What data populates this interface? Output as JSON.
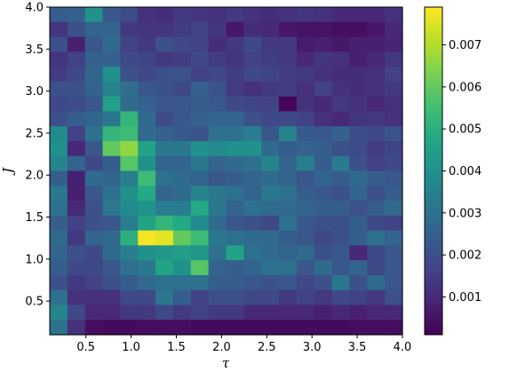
{
  "chart_data": {
    "type": "heatmap",
    "title": "",
    "xlabel": "τ",
    "ylabel": "J",
    "xlim": [
      0.1,
      4.0
    ],
    "ylim": [
      0.1,
      4.0
    ],
    "x_ticks": [
      0.5,
      1.0,
      1.5,
      2.0,
      2.5,
      3.0,
      3.5,
      4.0
    ],
    "x_tick_labels": [
      "0.5",
      "1.0",
      "1.5",
      "2.0",
      "2.5",
      "3.0",
      "3.5",
      "4.0"
    ],
    "y_ticks": [
      0.5,
      1.0,
      1.5,
      2.0,
      2.5,
      3.0,
      3.5,
      4.0
    ],
    "y_tick_labels": [
      "0.5",
      "1.0",
      "1.5",
      "2.0",
      "2.5",
      "3.0",
      "3.5",
      "4.0"
    ],
    "colormap": "viridis",
    "colorbar_range": [
      0.0001,
      0.0079
    ],
    "colorbar_ticks": [
      0.001,
      0.002,
      0.003,
      0.004,
      0.005,
      0.006,
      0.007
    ],
    "colorbar_tick_labels": [
      "0.001",
      "0.002",
      "0.003",
      "0.004",
      "0.005",
      "0.006",
      "0.007"
    ],
    "grid": false,
    "legend": "none",
    "z_note": "rows listed from top (J≈4.0) to bottom (J≈0.1); 20 columns from τ≈0.1 to τ≈4.0",
    "z": [
      [
        0.0024,
        0.0025,
        0.004,
        0.0022,
        0.0019,
        0.0012,
        0.0011,
        0.0014,
        0.0013,
        0.0012,
        0.0014,
        0.0012,
        0.0011,
        0.0012,
        0.0013,
        0.0012,
        0.001,
        0.001,
        0.001,
        0.0012
      ],
      [
        0.0013,
        0.002,
        0.0026,
        0.0026,
        0.0014,
        0.0013,
        0.0013,
        0.0015,
        0.0016,
        0.0013,
        0.0006,
        0.0011,
        0.001,
        0.0006,
        0.0005,
        0.0005,
        0.0004,
        0.0004,
        0.0006,
        0.001
      ],
      [
        0.002,
        0.0008,
        0.0022,
        0.0028,
        0.0016,
        0.0014,
        0.002,
        0.0018,
        0.0016,
        0.0011,
        0.0014,
        0.0018,
        0.0014,
        0.0014,
        0.0007,
        0.0008,
        0.0006,
        0.0008,
        0.0008,
        0.0009
      ],
      [
        0.0013,
        0.0016,
        0.0025,
        0.0025,
        0.0018,
        0.0017,
        0.0014,
        0.0015,
        0.0018,
        0.0015,
        0.0013,
        0.0016,
        0.0015,
        0.0014,
        0.001,
        0.0013,
        0.0012,
        0.0008,
        0.001,
        0.0014
      ],
      [
        0.0015,
        0.0018,
        0.0026,
        0.004,
        0.002,
        0.0018,
        0.002,
        0.0021,
        0.0016,
        0.0018,
        0.0015,
        0.0018,
        0.0017,
        0.0015,
        0.0014,
        0.0012,
        0.0011,
        0.0011,
        0.0012,
        0.0016
      ],
      [
        0.002,
        0.002,
        0.0025,
        0.0036,
        0.0029,
        0.0022,
        0.002,
        0.0018,
        0.0025,
        0.0021,
        0.0015,
        0.0012,
        0.0014,
        0.0015,
        0.0012,
        0.0016,
        0.0012,
        0.0011,
        0.0012,
        0.0014
      ],
      [
        0.0018,
        0.0019,
        0.0022,
        0.0045,
        0.0028,
        0.0025,
        0.0022,
        0.0022,
        0.0024,
        0.0022,
        0.0018,
        0.0017,
        0.0016,
        0.0002,
        0.0012,
        0.001,
        0.0014,
        0.0012,
        0.001,
        0.0012
      ],
      [
        0.002,
        0.0024,
        0.0026,
        0.0032,
        0.0052,
        0.0028,
        0.0019,
        0.0022,
        0.0025,
        0.0026,
        0.0026,
        0.002,
        0.0018,
        0.0018,
        0.0016,
        0.0012,
        0.001,
        0.0013,
        0.0014,
        0.0012
      ],
      [
        0.0038,
        0.0016,
        0.003,
        0.0052,
        0.0054,
        0.0028,
        0.0025,
        0.0023,
        0.0021,
        0.003,
        0.003,
        0.0034,
        0.0022,
        0.0036,
        0.0023,
        0.0022,
        0.0025,
        0.0019,
        0.0018,
        0.0021
      ],
      [
        0.004,
        0.001,
        0.0022,
        0.006,
        0.0066,
        0.0046,
        0.0032,
        0.0032,
        0.004,
        0.0038,
        0.004,
        0.004,
        0.0028,
        0.0024,
        0.0026,
        0.0024,
        0.002,
        0.0019,
        0.0015,
        0.0017
      ],
      [
        0.0036,
        0.0026,
        0.0018,
        0.0024,
        0.0058,
        0.004,
        0.0026,
        0.0026,
        0.0032,
        0.0026,
        0.0028,
        0.003,
        0.0036,
        0.0026,
        0.0034,
        0.0024,
        0.0033,
        0.002,
        0.0016,
        0.0018
      ],
      [
        0.0024,
        0.0008,
        0.0028,
        0.0026,
        0.0034,
        0.0054,
        0.003,
        0.0028,
        0.0026,
        0.0022,
        0.0024,
        0.0026,
        0.0028,
        0.0026,
        0.0022,
        0.0026,
        0.0024,
        0.0028,
        0.0024,
        0.0022
      ],
      [
        0.0032,
        0.0008,
        0.0022,
        0.003,
        0.004,
        0.0048,
        0.0026,
        0.0028,
        0.0036,
        0.0032,
        0.003,
        0.0026,
        0.0032,
        0.003,
        0.0024,
        0.0022,
        0.002,
        0.0026,
        0.002,
        0.0024
      ],
      [
        0.003,
        0.001,
        0.002,
        0.0032,
        0.0038,
        0.004,
        0.0034,
        0.0034,
        0.0048,
        0.0032,
        0.0026,
        0.003,
        0.0028,
        0.0028,
        0.0026,
        0.0024,
        0.0024,
        0.002,
        0.0024,
        0.0028
      ],
      [
        0.0024,
        0.0016,
        0.002,
        0.0022,
        0.0034,
        0.0046,
        0.0052,
        0.0048,
        0.0038,
        0.0028,
        0.0022,
        0.002,
        0.0018,
        0.003,
        0.0022,
        0.002,
        0.002,
        0.0024,
        0.0018,
        0.0016
      ],
      [
        0.0028,
        0.0014,
        0.0026,
        0.0028,
        0.005,
        0.0078,
        0.0076,
        0.006,
        0.0054,
        0.0032,
        0.003,
        0.0028,
        0.0028,
        0.0024,
        0.0022,
        0.0018,
        0.002,
        0.0024,
        0.003,
        0.0026
      ],
      [
        0.0026,
        0.002,
        0.0018,
        0.0028,
        0.0034,
        0.004,
        0.0042,
        0.0044,
        0.0042,
        0.003,
        0.0046,
        0.003,
        0.0028,
        0.0026,
        0.0028,
        0.002,
        0.0022,
        0.001,
        0.0018,
        0.0022
      ],
      [
        0.0024,
        0.0018,
        0.0018,
        0.0022,
        0.003,
        0.0032,
        0.0046,
        0.004,
        0.0058,
        0.0026,
        0.0024,
        0.0026,
        0.003,
        0.003,
        0.0022,
        0.0028,
        0.0022,
        0.0026,
        0.0018,
        0.0022
      ],
      [
        0.002,
        0.0014,
        0.0016,
        0.002,
        0.0024,
        0.0028,
        0.003,
        0.003,
        0.003,
        0.0024,
        0.0024,
        0.0022,
        0.002,
        0.0022,
        0.0018,
        0.002,
        0.0032,
        0.002,
        0.0028,
        0.0022
      ],
      [
        0.003,
        0.0012,
        0.0012,
        0.0012,
        0.0018,
        0.0018,
        0.0032,
        0.0024,
        0.0016,
        0.002,
        0.002,
        0.0018,
        0.0018,
        0.0014,
        0.0016,
        0.0014,
        0.0018,
        0.0016,
        0.0014,
        0.002
      ],
      [
        0.0036,
        0.0018,
        0.001,
        0.001,
        0.0014,
        0.0014,
        0.0018,
        0.0014,
        0.0016,
        0.0014,
        0.0014,
        0.001,
        0.001,
        0.001,
        0.001,
        0.0008,
        0.001,
        0.0008,
        0.001,
        0.001
      ],
      [
        0.003,
        0.0012,
        0.0004,
        0.0003,
        0.0003,
        0.0004,
        0.0004,
        0.0004,
        0.0003,
        0.0003,
        0.0003,
        0.0003,
        0.0003,
        0.0003,
        0.0003,
        0.0003,
        0.0003,
        0.0004,
        0.0004,
        0.0004
      ]
    ]
  }
}
